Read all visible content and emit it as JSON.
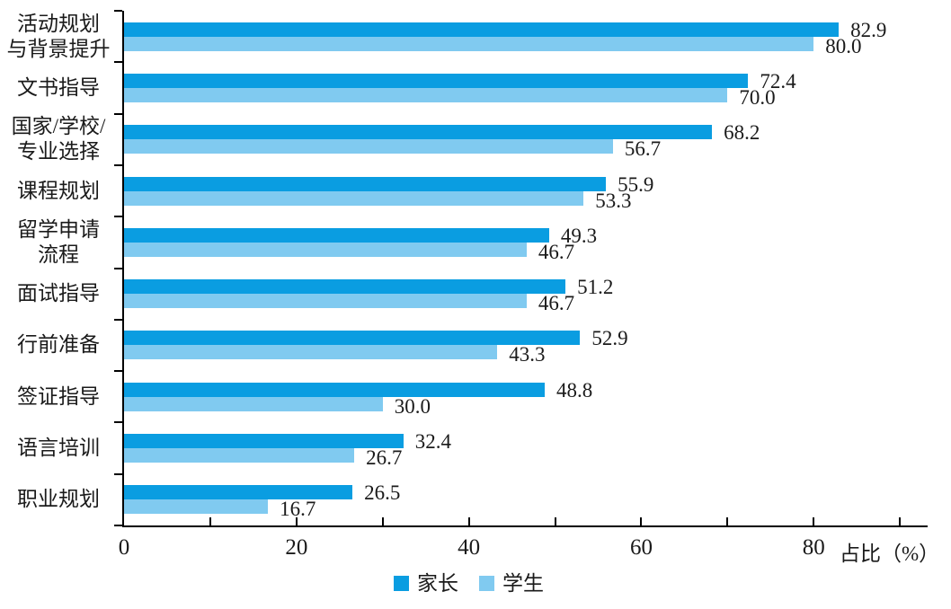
{
  "chart_data": {
    "type": "bar",
    "orientation": "horizontal",
    "title": "",
    "xlabel": "占比（%）",
    "ylabel": "",
    "xlim": [
      0,
      93
    ],
    "xticks_all": [
      0,
      10,
      20,
      30,
      40,
      50,
      60,
      70,
      80,
      90
    ],
    "xticks_labeled": [
      0,
      20,
      40,
      60,
      80
    ],
    "grid": false,
    "legend_position": "bottom-center",
    "value_labels_decimals": 1,
    "categories": [
      "活动规划\n与背景提升",
      "文书指导",
      "国家/学校/\n专业选择",
      "课程规划",
      "留学申请\n流程",
      "面试指导",
      "行前准备",
      "签证指导",
      "语言培训",
      "职业规划"
    ],
    "series": [
      {
        "name": "家长",
        "color": "#0a9de1",
        "values": [
          82.9,
          72.4,
          68.2,
          55.9,
          49.3,
          51.2,
          52.9,
          48.8,
          32.4,
          26.5
        ]
      },
      {
        "name": "学生",
        "color": "#80caf0",
        "values": [
          80.0,
          70.0,
          56.7,
          53.3,
          46.7,
          46.7,
          43.3,
          30.0,
          26.7,
          16.7
        ]
      }
    ]
  },
  "colors": {
    "axis": "#000000",
    "text": "#1a1a1a",
    "background": "#ffffff"
  }
}
